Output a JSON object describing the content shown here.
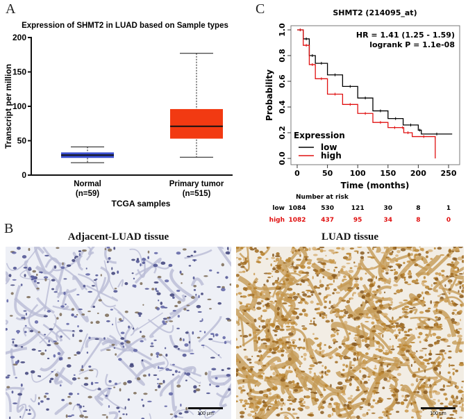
{
  "panel_labels": {
    "a": "A",
    "b": "B",
    "c": "C"
  },
  "chart_data": [
    {
      "type": "box",
      "title": "Expression of SHMT2 in LUAD based on Sample types",
      "xlabel": "TCGA samples",
      "ylabel": "Transcript per million",
      "ylim": [
        0,
        200
      ],
      "yticks": [
        0,
        50,
        100,
        150,
        200
      ],
      "categories": [
        "Normal",
        "Primary tumor"
      ],
      "category_counts": [
        "(n=59)",
        "(n=515)"
      ],
      "boxes": [
        {
          "min": 18,
          "q1": 25,
          "median": 29,
          "q3": 33,
          "max": 41,
          "color": "#3b4fd0"
        },
        {
          "min": 26,
          "q1": 53,
          "median": 71,
          "q3": 96,
          "max": 177,
          "color": "#f23a12"
        }
      ],
      "grid": false
    },
    {
      "type": "line",
      "title": "SHMT2 (214095_at)",
      "xlabel": "Time (months)",
      "ylabel": "Probability",
      "xlim": [
        0,
        260
      ],
      "ylim": [
        0,
        1
      ],
      "xticks": [
        0,
        50,
        100,
        150,
        200,
        250
      ],
      "yticks": [
        "0.0",
        "0.2",
        "0.4",
        "0.6",
        "0.8",
        "1.0"
      ],
      "annotations": [
        "HR = 1.41 (1.25 - 1.59)",
        "logrank P = 1.1e-08"
      ],
      "legend": {
        "title": "Expression",
        "placement": "bottom-left"
      },
      "series": [
        {
          "name": "low",
          "color": "#000000",
          "x": [
            0,
            10,
            20,
            30,
            50,
            75,
            100,
            125,
            150,
            175,
            200,
            205,
            256
          ],
          "y": [
            1,
            0.93,
            0.8,
            0.74,
            0.65,
            0.56,
            0.47,
            0.37,
            0.31,
            0.26,
            0.22,
            0.19,
            0.19
          ]
        },
        {
          "name": "high",
          "color": "#e01010",
          "x": [
            0,
            10,
            20,
            30,
            50,
            75,
            100,
            125,
            150,
            172,
            176,
            190,
            228,
            228
          ],
          "y": [
            1,
            0.88,
            0.73,
            0.62,
            0.5,
            0.42,
            0.35,
            0.28,
            0.24,
            0.24,
            0.2,
            0.17,
            0.16,
            0
          ]
        }
      ],
      "risk_table": {
        "title": "Number at risk",
        "rows": [
          {
            "label": "low",
            "values": [
              "1084",
              "530",
              "121",
              "30",
              "8",
              "1"
            ]
          },
          {
            "label": "high",
            "values": [
              "1082",
              "437",
              "95",
              "34",
              "8",
              "0"
            ]
          }
        ]
      }
    }
  ],
  "histology": {
    "left_title": "Adjacent-LUAD tissue",
    "right_title": "LUAD tissue",
    "scale_bar": "100 μm"
  }
}
